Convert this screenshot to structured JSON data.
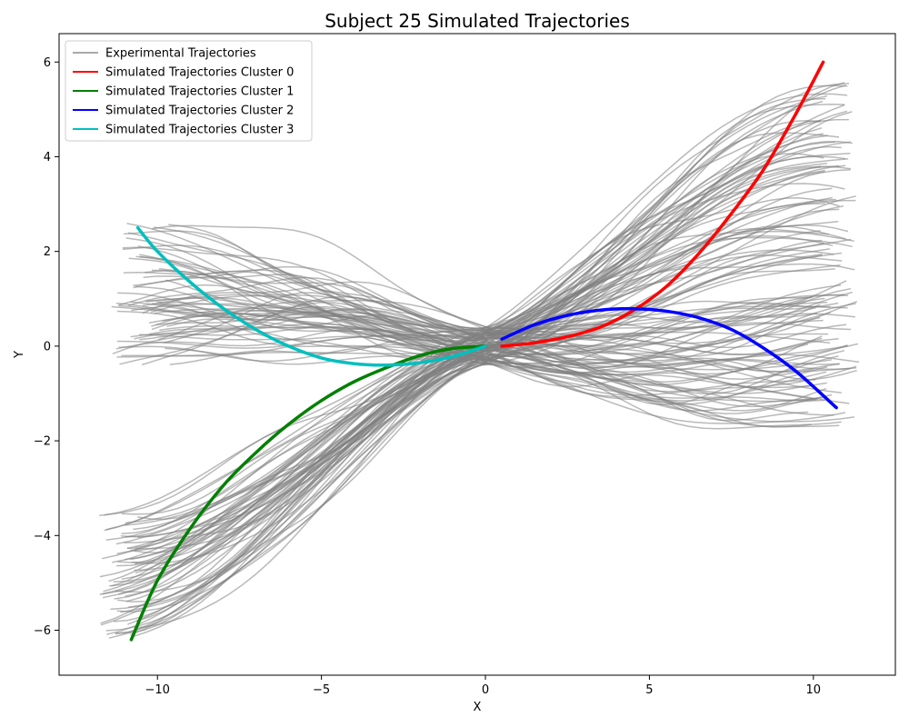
{
  "chart_data": {
    "type": "line",
    "title": "Subject 25 Simulated Trajectories",
    "xlabel": "X",
    "ylabel": "Y",
    "xlim": [
      -13.0,
      12.5
    ],
    "ylim": [
      -6.95,
      6.6
    ],
    "xticks": [
      -10,
      -5,
      0,
      5,
      10
    ],
    "yticks": [
      -6,
      -4,
      -2,
      0,
      2,
      4,
      6
    ],
    "xtick_labels": [
      "−10",
      "−5",
      "0",
      "5",
      "10"
    ],
    "ytick_labels": [
      "−6",
      "−4",
      "−2",
      "0",
      "2",
      "4",
      "6"
    ],
    "grid": false,
    "legend": {
      "position": "top-left",
      "entries": [
        {
          "label": "Experimental Trajectories",
          "color": "#a9a9a9"
        },
        {
          "label": "Simulated Trajectories Cluster 0",
          "color": "#ff0000"
        },
        {
          "label": "Simulated Trajectories Cluster 1",
          "color": "#008000"
        },
        {
          "label": "Simulated Trajectories Cluster 2",
          "color": "#0000ff"
        },
        {
          "label": "Simulated Trajectories Cluster 3",
          "color": "#00bfbf"
        }
      ]
    },
    "experimental_color": "#808080",
    "experimental_bundles": [
      {
        "name": "Experimental Trajectories",
        "count": 65,
        "end_x": [
          10.2,
          11.3
        ],
        "end_y": [
          1.5,
          5.7
        ]
      },
      {
        "name": "Experimental Trajectories",
        "count": 65,
        "end_x": [
          -11.8,
          -10.6
        ],
        "end_y": [
          -6.2,
          -3.4
        ]
      },
      {
        "name": "Experimental Trajectories",
        "count": 65,
        "end_x": [
          9.8,
          11.4
        ],
        "end_y": [
          -1.7,
          1.4
        ]
      },
      {
        "name": "Experimental Trajectories",
        "count": 65,
        "end_x": [
          -11.4,
          -9.6
        ],
        "end_y": [
          -0.4,
          2.6
        ]
      }
    ],
    "series": [
      {
        "name": "Simulated Trajectories Cluster 0",
        "color": "#ff0000",
        "x": [
          0.5,
          1.5,
          2.5,
          3.5,
          4.5,
          5.5,
          6.5,
          7.5,
          8.5,
          9.5,
          10.3
        ],
        "y": [
          0.0,
          0.07,
          0.2,
          0.4,
          0.75,
          1.25,
          1.95,
          2.8,
          3.75,
          4.95,
          6.0
        ]
      },
      {
        "name": "Simulated Trajectories Cluster 1",
        "color": "#008000",
        "x": [
          -10.8,
          -10.0,
          -9.0,
          -8.0,
          -7.0,
          -6.0,
          -5.0,
          -4.0,
          -3.0,
          -2.0,
          -1.0,
          0.0
        ],
        "y": [
          -6.2,
          -4.95,
          -3.85,
          -2.95,
          -2.25,
          -1.65,
          -1.15,
          -0.75,
          -0.45,
          -0.2,
          -0.05,
          0.0
        ]
      },
      {
        "name": "Simulated Trajectories Cluster 2",
        "color": "#0000ff",
        "x": [
          0.5,
          1.5,
          2.5,
          3.5,
          4.5,
          5.5,
          6.5,
          7.5,
          8.5,
          9.5,
          10.7
        ],
        "y": [
          0.15,
          0.45,
          0.65,
          0.76,
          0.79,
          0.74,
          0.6,
          0.35,
          -0.05,
          -0.55,
          -1.3
        ]
      },
      {
        "name": "Simulated Trajectories Cluster 3",
        "color": "#00bfbf",
        "x": [
          -10.6,
          -10.0,
          -9.0,
          -8.0,
          -7.0,
          -6.0,
          -5.0,
          -4.0,
          -3.0,
          -2.0,
          -1.0,
          0.0
        ],
        "y": [
          2.5,
          2.0,
          1.35,
          0.8,
          0.35,
          -0.0,
          -0.25,
          -0.37,
          -0.4,
          -0.35,
          -0.22,
          0.0
        ]
      }
    ]
  }
}
